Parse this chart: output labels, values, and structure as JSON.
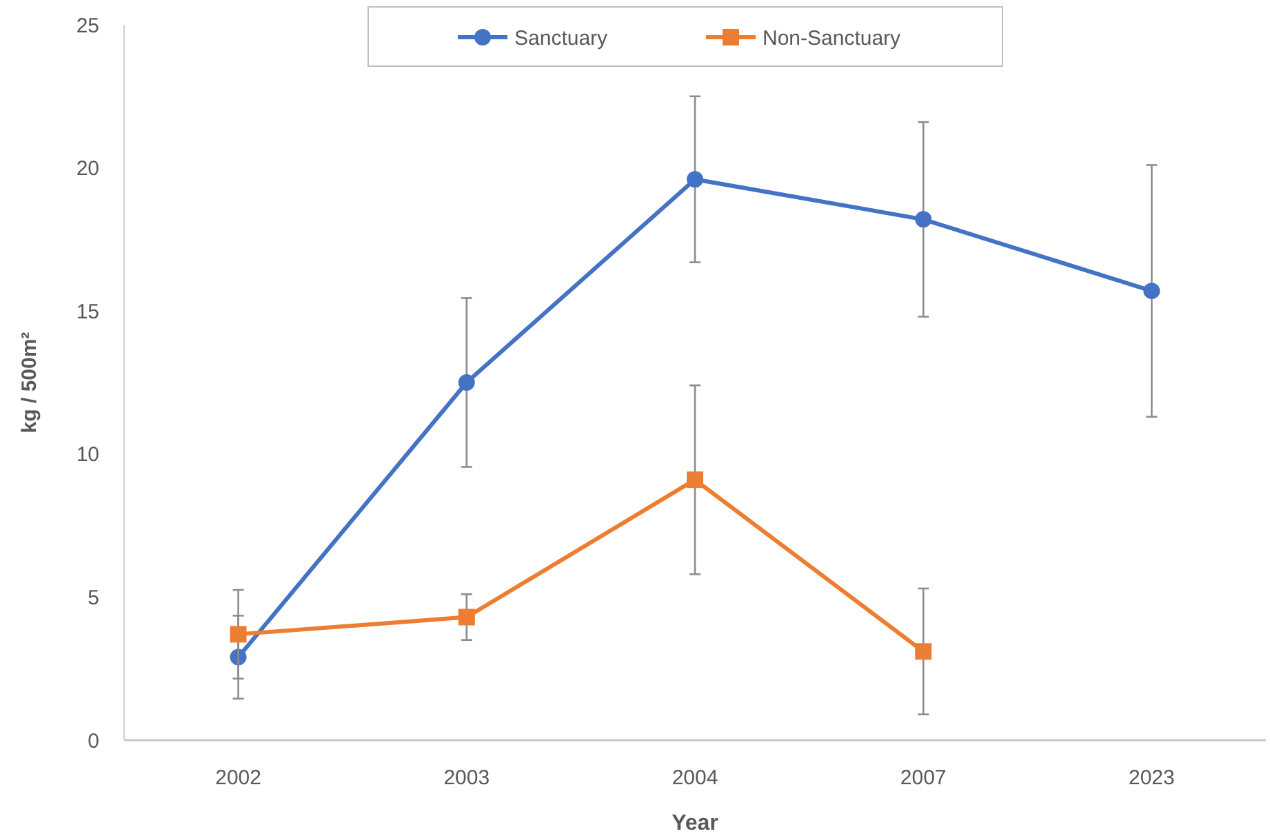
{
  "chart_data": {
    "type": "line",
    "xlabel": "Year",
    "ylabel": "kg / 500m²",
    "categories": [
      "2002",
      "2003",
      "2004",
      "2007",
      "2023"
    ],
    "series": [
      {
        "name": "Sanctuary",
        "color": "#4472c4",
        "marker": "circle",
        "values": [
          2.9,
          12.5,
          19.6,
          18.2,
          15.7
        ],
        "errors": [
          1.45,
          2.95,
          2.9,
          3.4,
          4.4
        ]
      },
      {
        "name": "Non-Sanctuary",
        "color": "#ed7d31",
        "marker": "square",
        "values": [
          3.7,
          4.3,
          9.1,
          3.1,
          null
        ],
        "errors": [
          1.55,
          0.8,
          3.3,
          2.2,
          null
        ]
      }
    ],
    "ylim": [
      0,
      25
    ],
    "yticks": [
      0,
      5,
      10,
      15,
      20,
      25
    ],
    "legend": "top",
    "grid": false
  }
}
